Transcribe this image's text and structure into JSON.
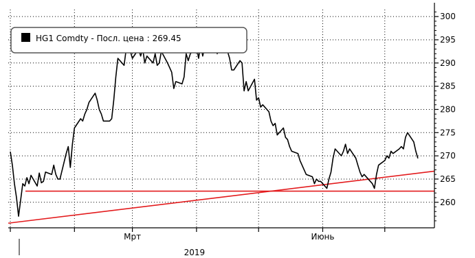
{
  "chart_data": {
    "type": "line",
    "legend": {
      "label": "HG1 Comdty - Посл. цена",
      "last_value": "269.45",
      "placement": "top-left"
    },
    "y_axis": {
      "side": "right",
      "ylim": [
        254.5,
        301.5
      ],
      "ticks": [
        260,
        265,
        270,
        275,
        280,
        285,
        290,
        295,
        300
      ],
      "gridlines": "dotted"
    },
    "x_axis": {
      "xlim": [
        "2018-12-31",
        "2019-07-25"
      ],
      "tick_labels": [
        {
          "label": "Мрт",
          "date": "2019-03-01"
        },
        {
          "label": "Июнь",
          "date": "2019-06-01"
        }
      ],
      "year_label": "2019",
      "year_date": "2019-03-31",
      "gridline_dates": [
        "2019-01-01",
        "2019-02-01",
        "2019-03-01",
        "2019-04-01",
        "2019-05-01",
        "2019-06-01",
        "2019-07-01"
      ]
    },
    "series": [
      {
        "color": "#000000",
        "points": [
          [
            "2019-01-01",
            270.9
          ],
          [
            "2019-01-02",
            268.0
          ],
          [
            "2019-01-03",
            264.0
          ],
          [
            "2019-01-04",
            261.0
          ],
          [
            "2019-01-05",
            257.0
          ],
          [
            "2019-01-07",
            264.0
          ],
          [
            "2019-01-08",
            263.5
          ],
          [
            "2019-01-09",
            265.3
          ],
          [
            "2019-01-10",
            264.0
          ],
          [
            "2019-01-11",
            265.8
          ],
          [
            "2019-01-14",
            263.5
          ],
          [
            "2019-01-15",
            266.3
          ],
          [
            "2019-01-16",
            264.2
          ],
          [
            "2019-01-17",
            264.5
          ],
          [
            "2019-01-18",
            266.5
          ],
          [
            "2019-01-21",
            266.0
          ],
          [
            "2019-01-22",
            268.0
          ],
          [
            "2019-01-23",
            266.0
          ],
          [
            "2019-01-24",
            265.0
          ],
          [
            "2019-01-25",
            265.0
          ],
          [
            "2019-01-28",
            270.5
          ],
          [
            "2019-01-29",
            272.0
          ],
          [
            "2019-01-30",
            267.5
          ],
          [
            "2019-01-31",
            272.5
          ],
          [
            "2019-02-01",
            276.0
          ],
          [
            "2019-02-04",
            278.0
          ],
          [
            "2019-02-05",
            277.5
          ],
          [
            "2019-02-06",
            279.0
          ],
          [
            "2019-02-07",
            280.0
          ],
          [
            "2019-02-08",
            281.5
          ],
          [
            "2019-02-11",
            283.5
          ],
          [
            "2019-02-12",
            282.0
          ],
          [
            "2019-02-13",
            280.0
          ],
          [
            "2019-02-14",
            279.0
          ],
          [
            "2019-02-15",
            277.5
          ],
          [
            "2019-02-18",
            277.5
          ],
          [
            "2019-02-19",
            278.0
          ],
          [
            "2019-02-20",
            282.0
          ],
          [
            "2019-02-21",
            287.0
          ],
          [
            "2019-02-22",
            291.0
          ],
          [
            "2019-02-25",
            289.5
          ],
          [
            "2019-02-26",
            293.0
          ],
          [
            "2019-02-27",
            294.0
          ],
          [
            "2019-02-28",
            292.5
          ],
          [
            "2019-03-01",
            291.0
          ],
          [
            "2019-03-04",
            293.0
          ],
          [
            "2019-03-05",
            291.5
          ],
          [
            "2019-03-06",
            293.0
          ],
          [
            "2019-03-07",
            290.0
          ],
          [
            "2019-03-08",
            291.5
          ],
          [
            "2019-03-11",
            290.0
          ],
          [
            "2019-03-12",
            292.0
          ],
          [
            "2019-03-13",
            289.5
          ],
          [
            "2019-03-14",
            290.0
          ],
          [
            "2019-03-15",
            292.5
          ],
          [
            "2019-03-18",
            290.0
          ],
          [
            "2019-03-19",
            289.0
          ],
          [
            "2019-03-20",
            288.0
          ],
          [
            "2019-03-21",
            284.5
          ],
          [
            "2019-03-22",
            286.0
          ],
          [
            "2019-03-25",
            285.5
          ],
          [
            "2019-03-26",
            287.0
          ],
          [
            "2019-03-27",
            292.0
          ],
          [
            "2019-03-28",
            290.5
          ],
          [
            "2019-03-29",
            292.0
          ],
          [
            "2019-04-01",
            293.5
          ],
          [
            "2019-04-02",
            291.0
          ],
          [
            "2019-04-03",
            294.0
          ],
          [
            "2019-04-04",
            291.5
          ],
          [
            "2019-04-05",
            293.5
          ],
          [
            "2019-04-08",
            295.5
          ],
          [
            "2019-04-09",
            293.0
          ],
          [
            "2019-04-10",
            294.0
          ],
          [
            "2019-04-11",
            292.0
          ],
          [
            "2019-04-12",
            295.0
          ],
          [
            "2019-04-15",
            293.0
          ],
          [
            "2019-04-16",
            292.5
          ],
          [
            "2019-04-17",
            291.0
          ],
          [
            "2019-04-18",
            288.5
          ],
          [
            "2019-04-19",
            288.5
          ],
          [
            "2019-04-22",
            290.5
          ],
          [
            "2019-04-23",
            290.0
          ],
          [
            "2019-04-24",
            284.0
          ],
          [
            "2019-04-25",
            286.0
          ],
          [
            "2019-04-26",
            284.0
          ],
          [
            "2019-04-29",
            286.5
          ],
          [
            "2019-04-30",
            282.0
          ],
          [
            "2019-05-01",
            282.5
          ],
          [
            "2019-05-02",
            280.5
          ],
          [
            "2019-05-03",
            281.0
          ],
          [
            "2019-05-06",
            279.5
          ],
          [
            "2019-05-07",
            277.5
          ],
          [
            "2019-05-08",
            276.5
          ],
          [
            "2019-05-09",
            277.0
          ],
          [
            "2019-05-10",
            274.5
          ],
          [
            "2019-05-13",
            276.0
          ],
          [
            "2019-05-14",
            274.0
          ],
          [
            "2019-05-15",
            273.5
          ],
          [
            "2019-05-16",
            272.0
          ],
          [
            "2019-05-17",
            271.0
          ],
          [
            "2019-05-20",
            270.5
          ],
          [
            "2019-05-21",
            269.0
          ],
          [
            "2019-05-22",
            268.0
          ],
          [
            "2019-05-23",
            267.0
          ],
          [
            "2019-05-24",
            266.0
          ],
          [
            "2019-05-27",
            265.5
          ],
          [
            "2019-05-28",
            264.0
          ],
          [
            "2019-05-29",
            265.0
          ],
          [
            "2019-05-30",
            264.5
          ],
          [
            "2019-05-31",
            264.5
          ],
          [
            "2019-06-03",
            263.0
          ],
          [
            "2019-06-04",
            265.0
          ],
          [
            "2019-06-05",
            266.5
          ],
          [
            "2019-06-06",
            269.5
          ],
          [
            "2019-06-07",
            271.5
          ],
          [
            "2019-06-10",
            270.0
          ],
          [
            "2019-06-11",
            271.0
          ],
          [
            "2019-06-12",
            272.5
          ],
          [
            "2019-06-13",
            270.5
          ],
          [
            "2019-06-14",
            271.5
          ],
          [
            "2019-06-17",
            269.5
          ],
          [
            "2019-06-18",
            268.0
          ],
          [
            "2019-06-19",
            266.5
          ],
          [
            "2019-06-20",
            265.5
          ],
          [
            "2019-06-21",
            266.0
          ],
          [
            "2019-06-24",
            264.5
          ],
          [
            "2019-06-25",
            264.0
          ],
          [
            "2019-06-26",
            263.0
          ],
          [
            "2019-06-27",
            266.0
          ],
          [
            "2019-06-28",
            268.0
          ],
          [
            "2019-07-01",
            269.0
          ],
          [
            "2019-07-02",
            270.0
          ],
          [
            "2019-07-03",
            269.5
          ],
          [
            "2019-07-04",
            271.0
          ],
          [
            "2019-07-05",
            270.5
          ],
          [
            "2019-07-08",
            271.5
          ],
          [
            "2019-07-09",
            272.0
          ],
          [
            "2019-07-10",
            271.5
          ],
          [
            "2019-07-11",
            274.0
          ],
          [
            "2019-07-12",
            275.0
          ],
          [
            "2019-07-15",
            273.0
          ],
          [
            "2019-07-16",
            271.0
          ],
          [
            "2019-07-17",
            269.45
          ]
        ]
      }
    ],
    "reference_lines": [
      {
        "type": "horizontal",
        "color": "#e31a1c",
        "y": 262.4
      },
      {
        "type": "trend",
        "color": "#e31a1c",
        "from": [
          "2018-12-31",
          255.5
        ],
        "to": [
          "2019-07-25",
          266.7
        ]
      }
    ]
  }
}
